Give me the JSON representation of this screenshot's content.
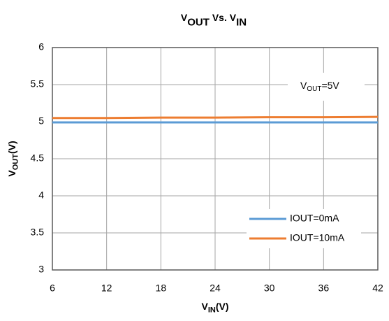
{
  "chart_data": {
    "type": "line",
    "title": [
      {
        "text": "V"
      },
      {
        "text": "OUT",
        "sub": true
      },
      {
        "text": " Vs. V"
      },
      {
        "text": "IN",
        "sub": true
      }
    ],
    "x_label": [
      {
        "text": "V"
      },
      {
        "text": "IN",
        "sub": true
      },
      {
        "text": "(V)"
      }
    ],
    "y_label": [
      {
        "text": "V"
      },
      {
        "text": "OUT",
        "sub": true
      },
      {
        "text": "(V)"
      }
    ],
    "annotation": [
      {
        "text": "V"
      },
      {
        "text": "OUT",
        "sub": true
      },
      {
        "text": "=5V"
      }
    ],
    "x": [
      6,
      12,
      18,
      24,
      30,
      36,
      42
    ],
    "series": [
      {
        "name": "IOUT=0mA",
        "color": "#5b9bd5",
        "values": [
          4.99,
          4.99,
          4.99,
          4.99,
          4.99,
          4.99,
          4.99
        ]
      },
      {
        "name": "IOUT=10mA",
        "color": "#ed7d31",
        "values": [
          5.05,
          5.05,
          5.055,
          5.055,
          5.06,
          5.06,
          5.065
        ]
      }
    ],
    "xlim": [
      6,
      42
    ],
    "xticks": [
      6,
      12,
      18,
      24,
      30,
      36,
      42
    ],
    "ylim": [
      3,
      6
    ],
    "yticks": [
      3,
      3.5,
      4,
      4.5,
      5,
      5.5,
      6
    ],
    "grid": true,
    "legend": "lower right"
  }
}
